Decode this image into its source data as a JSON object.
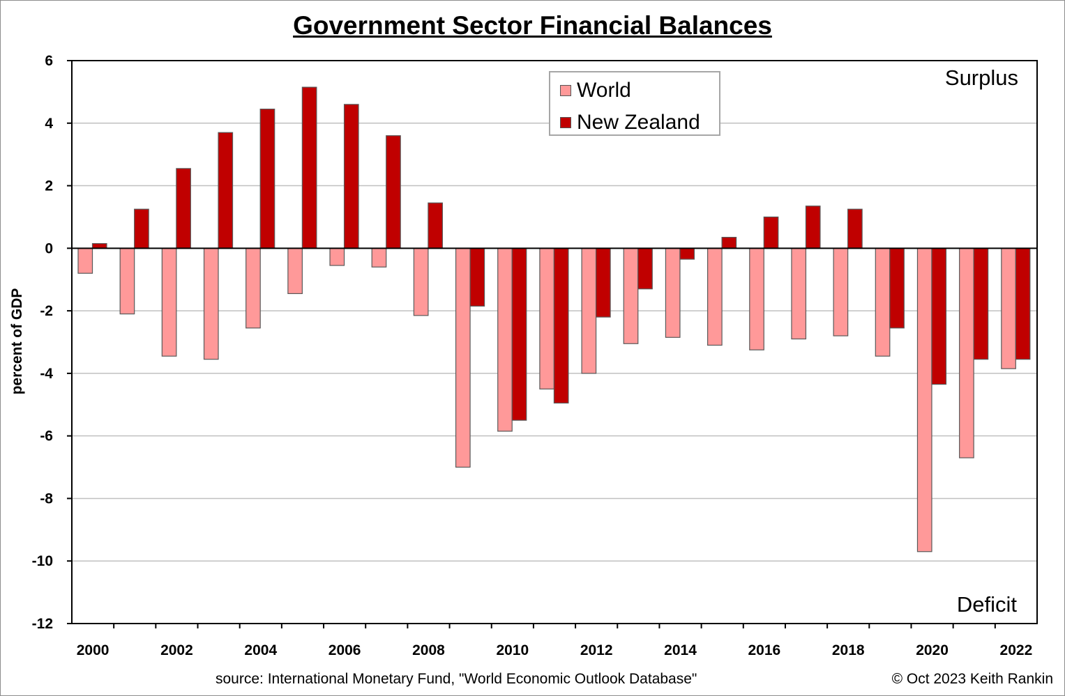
{
  "title": "Government Sector Financial Balances",
  "source_note": "source:  International Monetary Fund, \"World Economic Outlook Database\"",
  "copyright": "© Oct 2023 Keith Rankin",
  "surplus_label": "Surplus",
  "deficit_label": "Deficit",
  "colors": {
    "world": "#ff9999",
    "new_zealand": "#c00000",
    "grid": "#c0c0c0",
    "axis": "#000000"
  },
  "chart_data": {
    "type": "bar",
    "title": "Government Sector Financial Balances",
    "xlabel": "",
    "ylabel": "percent of GDP",
    "ylim": [
      -12,
      6
    ],
    "yticks": [
      6,
      4,
      2,
      0,
      -2,
      -4,
      -6,
      -8,
      -10,
      -12
    ],
    "grid": true,
    "legend_position": "top-center",
    "categories": [
      2000,
      2001,
      2002,
      2003,
      2004,
      2005,
      2006,
      2007,
      2008,
      2009,
      2010,
      2011,
      2012,
      2013,
      2014,
      2015,
      2016,
      2017,
      2018,
      2019,
      2020,
      2021,
      2022
    ],
    "x_tick_labels": [
      "2000",
      "2002",
      "2004",
      "2006",
      "2008",
      "2010",
      "2012",
      "2014",
      "2016",
      "2018",
      "2020",
      "2022"
    ],
    "series": [
      {
        "name": "World",
        "color": "#ff9999",
        "values": [
          -0.8,
          -2.1,
          -3.45,
          -3.55,
          -2.55,
          -1.45,
          -0.55,
          -0.6,
          -2.15,
          -7.0,
          -5.85,
          -4.5,
          -4.0,
          -3.05,
          -2.85,
          -3.1,
          -3.25,
          -2.9,
          -2.8,
          -3.45,
          -9.7,
          -6.7,
          -3.85
        ]
      },
      {
        "name": "New Zealand",
        "color": "#c00000",
        "values": [
          0.15,
          1.25,
          2.55,
          3.7,
          4.45,
          5.15,
          4.6,
          3.6,
          1.45,
          -1.85,
          -5.5,
          -4.95,
          -2.2,
          -1.3,
          -0.35,
          0.35,
          1.0,
          1.35,
          1.25,
          -2.55,
          -4.35,
          -3.55,
          -3.55
        ]
      }
    ]
  }
}
